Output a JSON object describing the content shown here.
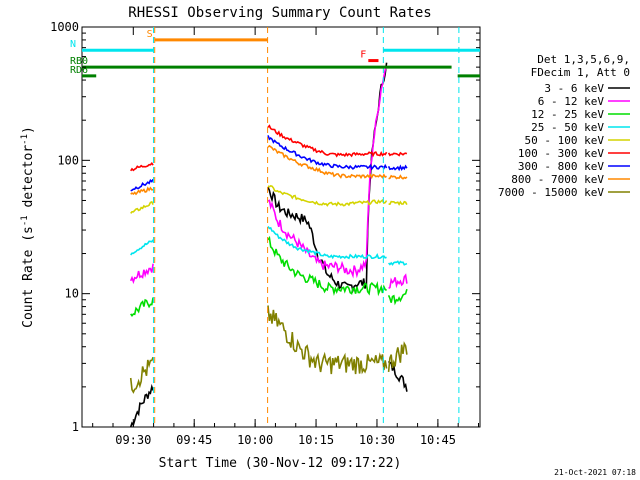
{
  "chart_data": {
    "type": "line",
    "title": "RHESSI Observing Summary Count Rates",
    "xlabel": "Start Time (30-Nov-12 09:17:22)",
    "ylabel_main": "Count Rate (s",
    "ylabel_sup": "-1",
    "ylabel_tail": " detector",
    "ylabel_end": ")",
    "yscale": "log",
    "ylim": [
      1,
      1000
    ],
    "xlim_minutes": [
      0,
      98
    ],
    "x_ticks": [
      {
        "label": "09:30",
        "minute": 12.63
      },
      {
        "label": "09:45",
        "minute": 27.63
      },
      {
        "label": "10:00",
        "minute": 42.63
      },
      {
        "label": "10:15",
        "minute": 57.63
      },
      {
        "label": "10:30",
        "minute": 72.63
      },
      {
        "label": "10:45",
        "minute": 87.63
      }
    ],
    "y_ticks": [
      {
        "label": "1",
        "value": 1
      },
      {
        "label": "10",
        "value": 10
      },
      {
        "label": "100",
        "value": 100
      },
      {
        "label": "1000",
        "value": 1000
      }
    ],
    "legend_placement": "right",
    "legend_header": [
      "Det 1,3,5,6,9,",
      "FDecim 1, Att 0"
    ],
    "series": [
      {
        "name": "3 - 6 keV",
        "color": "#000000",
        "pre": [
          1,
          2
        ],
        "post": [
          62,
          45,
          40,
          38,
          35,
          20,
          14,
          12,
          11,
          12,
          12,
          200,
          520
        ],
        "tail": [
          3,
          2
        ]
      },
      {
        "name": "6 - 12 keV",
        "color": "#ff00ff",
        "pre": [
          13,
          16
        ],
        "post": [
          50,
          35,
          28,
          24,
          20,
          17,
          16,
          16,
          15,
          15,
          17,
          200,
          520
        ],
        "tail": [
          12,
          13
        ]
      },
      {
        "name": "12 - 25 keV",
        "color": "#00dd00",
        "pre": [
          7,
          9
        ],
        "post": [
          25,
          19,
          16,
          14,
          13,
          12,
          11,
          11,
          11,
          11,
          11,
          11,
          11
        ],
        "tail": [
          9,
          10
        ]
      },
      {
        "name": "25 - 50 keV",
        "color": "#00e5ee",
        "pre": [
          20,
          25
        ],
        "post": [
          32,
          27,
          24,
          22,
          21,
          20,
          19,
          19,
          19,
          19,
          19,
          19,
          19
        ],
        "tail": [
          17,
          17
        ]
      },
      {
        "name": "50 - 100 keV",
        "color": "#d4d400",
        "pre": [
          40,
          48
        ],
        "post": [
          65,
          58,
          55,
          52,
          50,
          48,
          47,
          47,
          47,
          48,
          48,
          49,
          49
        ],
        "tail": [
          48,
          48
        ]
      },
      {
        "name": "100 - 300 keV",
        "color": "#ff0000",
        "pre": [
          85,
          95
        ],
        "post": [
          180,
          160,
          145,
          135,
          125,
          118,
          112,
          110,
          110,
          111,
          112,
          112,
          112
        ],
        "tail": [
          112,
          112
        ]
      },
      {
        "name": "300 - 800 keV",
        "color": "#0000ff",
        "pre": [
          60,
          70
        ],
        "post": [
          150,
          132,
          120,
          110,
          102,
          96,
          92,
          90,
          89,
          89,
          89,
          89,
          89
        ],
        "tail": [
          88,
          88
        ]
      },
      {
        "name": "800 - 7000 keV",
        "color": "#ff8800",
        "pre": [
          55,
          62
        ],
        "post": [
          128,
          115,
          105,
          96,
          90,
          85,
          80,
          77,
          76,
          76,
          76,
          76,
          76
        ],
        "tail": [
          75,
          75
        ]
      },
      {
        "name": "7000 - 15000 keV",
        "color": "#808000",
        "pre": [
          2,
          3
        ],
        "post": [
          7,
          6,
          5,
          4,
          3.5,
          3,
          3,
          3,
          3,
          3,
          3,
          3,
          3
        ],
        "tail": [
          3,
          4
        ]
      }
    ],
    "segment_minutes": {
      "pre": [
        12,
        17.5
      ],
      "post": [
        45.8,
        75.0
      ],
      "tail": [
        75.5,
        80.0
      ]
    },
    "vertical_markers": [
      {
        "minute": 17.6,
        "color": "#00e5ee"
      },
      {
        "minute": 17.9,
        "color": "#ff8800"
      },
      {
        "minute": 45.7,
        "color": "#ff8800"
      },
      {
        "minute": 74.2,
        "color": "#00e5ee"
      },
      {
        "minute": 92.8,
        "color": "#00e5ee"
      }
    ],
    "flag_bars": [
      {
        "label": "S",
        "color": "#ff8800",
        "from": 17.9,
        "to": 45.7,
        "level": 800
      },
      {
        "label": "N",
        "color": "#00e5ee",
        "from": 0,
        "to": 17.6,
        "level": 670
      },
      {
        "label": "",
        "color": "#00e5ee",
        "from": 74.2,
        "to": 92.8,
        "level": 670
      },
      {
        "label": "",
        "color": "#00e5ee",
        "from": 92.8,
        "to": 98,
        "level": 670
      },
      {
        "label": "F",
        "color": "#ff0000",
        "from": 70.5,
        "to": 73.0,
        "level": 560
      },
      {
        "label": "RB0",
        "color": "#008000",
        "from": 0,
        "to": 91.0,
        "level": 500
      },
      {
        "label": "RD6",
        "color": "#008000",
        "from": 0,
        "to": 3.5,
        "level": 430
      },
      {
        "label": "",
        "color": "#008000",
        "from": 92.5,
        "to": 98,
        "level": 430
      }
    ],
    "timestamp": "21-Oct-2021 07:18"
  }
}
